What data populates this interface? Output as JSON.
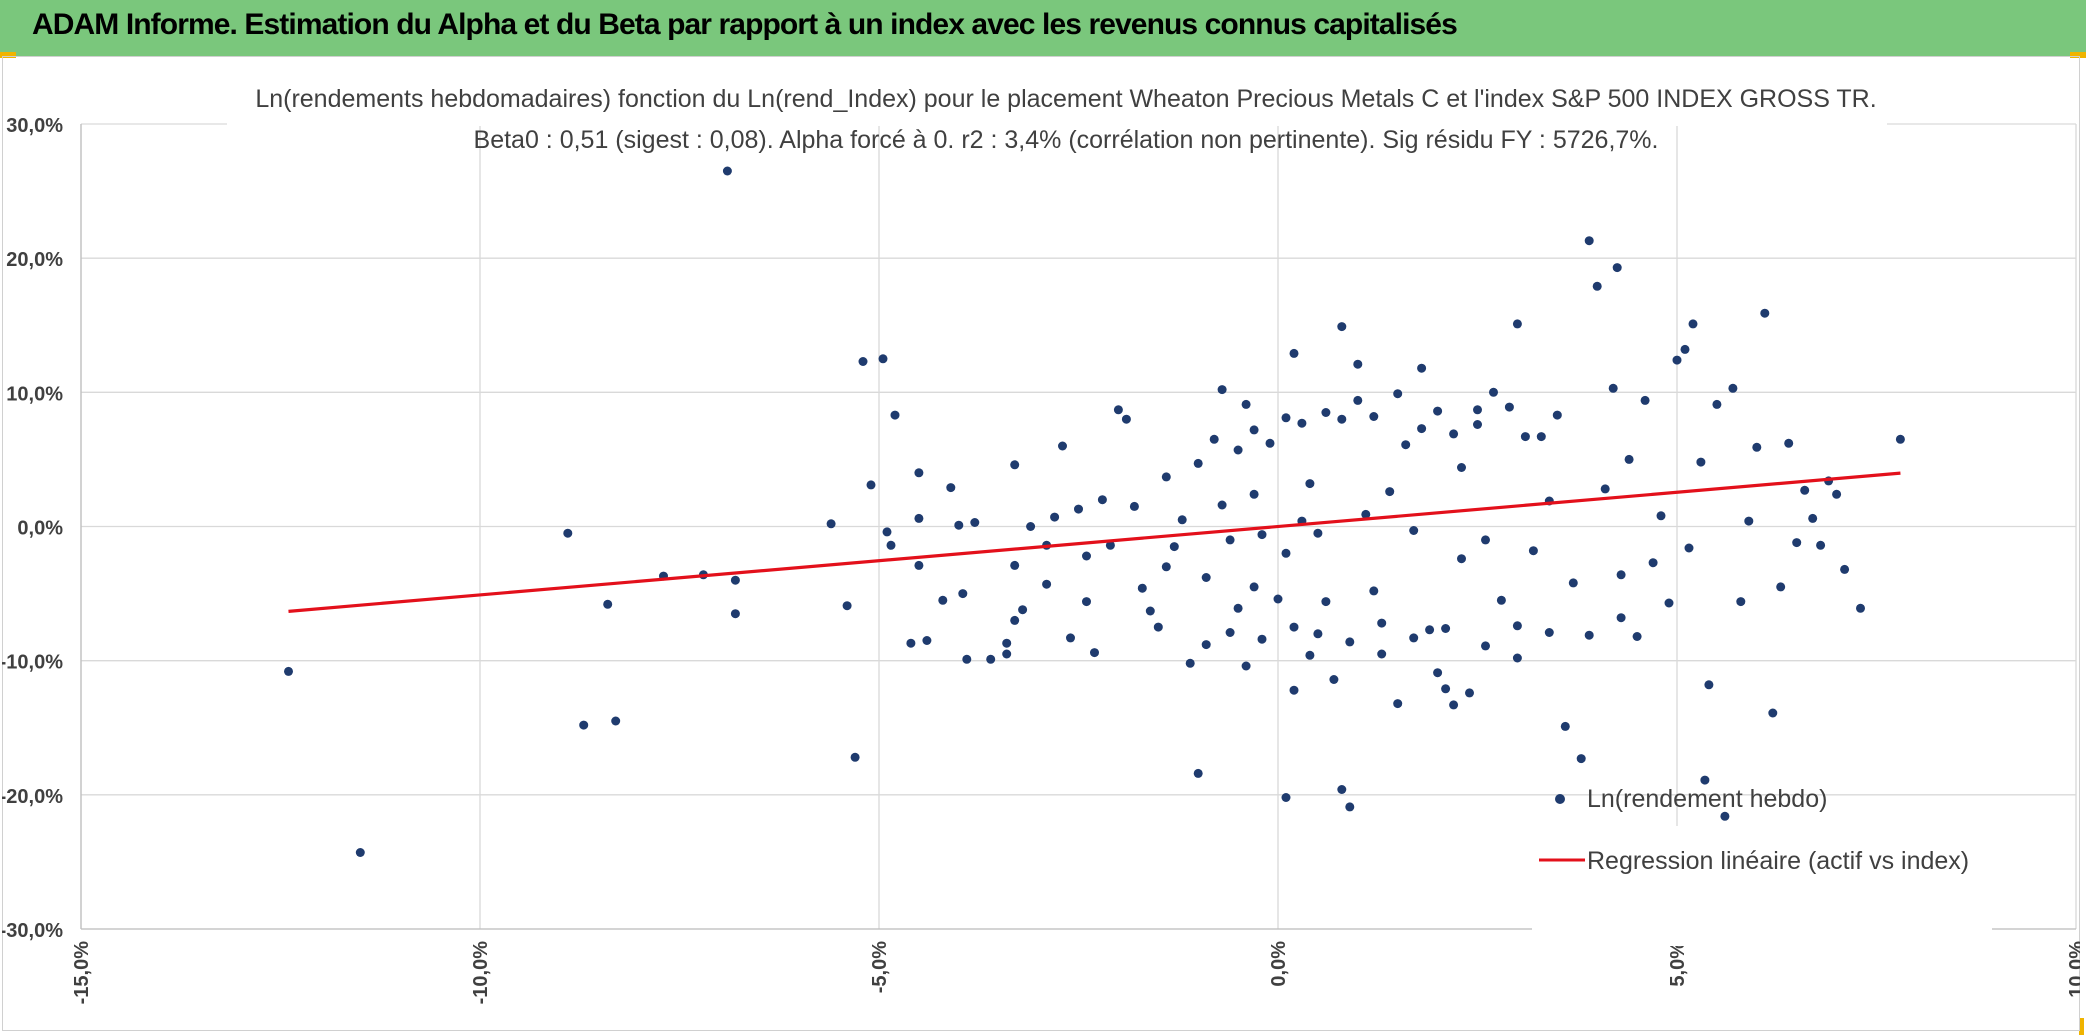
{
  "banner": {
    "title": "ADAM Informe. Estimation du Alpha et du Beta par rapport à un index avec les revenus connus capitalisés"
  },
  "colors": {
    "banner_bg": "#7ac77c",
    "points": "#1f3b6e",
    "regression": "#e3101b",
    "grid": "#d9d9d9",
    "accent_corner": "#f0b400"
  },
  "chart_data": {
    "type": "scatter",
    "title": "Ln(rendements hebdomadaires) fonction du Ln(rend_Index) pour le placement Wheaton Precious Metals C et l'index S&P 500 INDEX GROSS TR.",
    "subtitle": "Beta0 : 0,51 (sigest : 0,08). Alpha forcé à 0. r2 : 3,4% (corrélation non pertinente). Sig résidu FY : 5726,7%.",
    "xlabel": "",
    "ylabel": "",
    "xlim": [
      -15,
      10
    ],
    "ylim": [
      -30,
      30
    ],
    "x_ticks": [
      "-15,0%",
      "-10,0%",
      "-5,0%",
      "0,0%",
      "5,0%",
      "10,0%"
    ],
    "y_ticks": [
      "30,0%",
      "20,0%",
      "10,0%",
      "0,0%",
      "-10,0%",
      "-20,0%",
      "-30,0%"
    ],
    "grid": true,
    "legend_position": "bottom-right",
    "legend": [
      {
        "label": "Ln(rendement hebdo)",
        "kind": "point"
      },
      {
        "label": "Regression linéaire (actif vs index)",
        "kind": "line"
      }
    ],
    "regression": {
      "slope": 0.51,
      "intercept": 0,
      "x_range": [
        -12.4,
        7.8
      ]
    },
    "series": [
      {
        "name": "Ln(rendement hebdo)",
        "points": [
          [
            -12.4,
            -10.8
          ],
          [
            -11.5,
            -24.3
          ],
          [
            -8.9,
            -0.5
          ],
          [
            -8.7,
            -14.8
          ],
          [
            -8.4,
            -5.8
          ],
          [
            -8.3,
            -14.5
          ],
          [
            -7.7,
            -3.7
          ],
          [
            -7.2,
            -3.6
          ],
          [
            -6.9,
            26.5
          ],
          [
            -6.8,
            -4.0
          ],
          [
            -6.8,
            -6.5
          ],
          [
            -5.6,
            0.2
          ],
          [
            -5.4,
            -5.9
          ],
          [
            -5.3,
            -17.2
          ],
          [
            -5.2,
            12.3
          ],
          [
            -5.1,
            3.1
          ],
          [
            -4.95,
            12.5
          ],
          [
            -4.9,
            -0.4
          ],
          [
            -4.85,
            -1.4
          ],
          [
            -4.8,
            8.3
          ],
          [
            -4.6,
            -8.7
          ],
          [
            -4.5,
            0.6
          ],
          [
            -4.5,
            -2.9
          ],
          [
            -4.5,
            4.0
          ],
          [
            -4.4,
            -8.5
          ],
          [
            -4.2,
            -5.5
          ],
          [
            -4.1,
            2.9
          ],
          [
            -4.0,
            0.1
          ],
          [
            -3.95,
            -5.0
          ],
          [
            -3.9,
            -9.9
          ],
          [
            -3.8,
            0.3
          ],
          [
            -3.6,
            -9.9
          ],
          [
            -3.4,
            -9.5
          ],
          [
            -3.4,
            -8.7
          ],
          [
            -3.3,
            4.6
          ],
          [
            -3.3,
            -2.9
          ],
          [
            -3.3,
            -7.0
          ],
          [
            -3.2,
            -6.2
          ],
          [
            -3.1,
            0.0
          ],
          [
            -2.9,
            -4.3
          ],
          [
            -2.9,
            -1.4
          ],
          [
            -2.8,
            0.7
          ],
          [
            -2.7,
            6.0
          ],
          [
            -2.6,
            -8.3
          ],
          [
            -2.5,
            1.3
          ],
          [
            -2.4,
            -2.2
          ],
          [
            -2.4,
            -5.6
          ],
          [
            -2.3,
            -9.4
          ],
          [
            -2.2,
            2.0
          ],
          [
            -2.1,
            -1.4
          ],
          [
            -2.0,
            8.7
          ],
          [
            -1.9,
            8.0
          ],
          [
            -1.8,
            1.5
          ],
          [
            -1.7,
            -4.6
          ],
          [
            -1.6,
            -6.3
          ],
          [
            -1.5,
            -7.5
          ],
          [
            -1.4,
            -3.0
          ],
          [
            -1.4,
            3.7
          ],
          [
            -1.3,
            -1.5
          ],
          [
            -1.2,
            0.5
          ],
          [
            -1.1,
            -10.2
          ],
          [
            -1.0,
            4.7
          ],
          [
            -1.0,
            -18.4
          ],
          [
            -0.9,
            -3.8
          ],
          [
            -0.8,
            6.5
          ],
          [
            -0.7,
            1.6
          ],
          [
            -0.6,
            -1.0
          ],
          [
            -0.5,
            -6.1
          ],
          [
            -0.5,
            5.7
          ],
          [
            -0.4,
            -10.4
          ],
          [
            -0.3,
            2.4
          ],
          [
            -0.3,
            -4.5
          ],
          [
            -0.2,
            -0.6
          ],
          [
            -0.1,
            6.2
          ],
          [
            0.0,
            -5.4
          ],
          [
            0.1,
            -20.2
          ],
          [
            0.1,
            -2.0
          ],
          [
            0.2,
            12.9
          ],
          [
            0.2,
            -12.2
          ],
          [
            0.3,
            0.4
          ],
          [
            0.4,
            3.2
          ],
          [
            0.4,
            -9.6
          ],
          [
            0.5,
            -0.5
          ],
          [
            0.6,
            -5.6
          ],
          [
            0.7,
            -11.4
          ],
          [
            0.8,
            14.9
          ],
          [
            0.8,
            8.0
          ],
          [
            0.8,
            -19.6
          ],
          [
            0.9,
            -20.9
          ],
          [
            1.0,
            12.1
          ],
          [
            1.1,
            0.9
          ],
          [
            1.2,
            -4.8
          ],
          [
            1.3,
            -9.5
          ],
          [
            1.4,
            2.6
          ],
          [
            1.5,
            -13.2
          ],
          [
            1.6,
            6.1
          ],
          [
            1.7,
            -0.3
          ],
          [
            1.8,
            11.8
          ],
          [
            1.9,
            -7.7
          ],
          [
            2.0,
            -10.9
          ],
          [
            2.1,
            -12.1
          ],
          [
            2.2,
            -13.3
          ],
          [
            2.3,
            4.4
          ],
          [
            2.3,
            -2.4
          ],
          [
            2.4,
            -12.4
          ],
          [
            2.5,
            8.7
          ],
          [
            2.6,
            -1.0
          ],
          [
            2.7,
            10.0
          ],
          [
            2.8,
            -5.5
          ],
          [
            3.0,
            15.1
          ],
          [
            3.0,
            -9.8
          ],
          [
            3.2,
            -1.8
          ],
          [
            3.3,
            6.7
          ],
          [
            3.4,
            1.9
          ],
          [
            3.6,
            -14.9
          ],
          [
            3.7,
            -4.2
          ],
          [
            3.8,
            -17.3
          ],
          [
            3.9,
            21.3
          ],
          [
            4.0,
            17.9
          ],
          [
            4.1,
            2.8
          ],
          [
            4.2,
            10.3
          ],
          [
            4.25,
            19.3
          ],
          [
            4.3,
            -3.6
          ],
          [
            4.4,
            5.0
          ],
          [
            4.5,
            -8.2
          ],
          [
            4.6,
            9.4
          ],
          [
            4.7,
            -2.7
          ],
          [
            4.8,
            0.8
          ],
          [
            4.9,
            -5.7
          ],
          [
            5.0,
            12.4
          ],
          [
            5.1,
            13.2
          ],
          [
            5.15,
            -1.6
          ],
          [
            5.2,
            15.1
          ],
          [
            5.3,
            4.8
          ],
          [
            5.35,
            -18.9
          ],
          [
            5.4,
            -11.8
          ],
          [
            5.5,
            9.1
          ],
          [
            5.6,
            -21.6
          ],
          [
            5.7,
            10.3
          ],
          [
            5.8,
            -5.6
          ],
          [
            5.9,
            0.4
          ],
          [
            6.0,
            5.9
          ],
          [
            6.1,
            15.9
          ],
          [
            6.2,
            -13.9
          ],
          [
            6.3,
            -4.5
          ],
          [
            6.4,
            6.2
          ],
          [
            6.5,
            -1.2
          ],
          [
            6.6,
            2.7
          ],
          [
            6.7,
            0.6
          ],
          [
            6.8,
            -1.4
          ],
          [
            6.9,
            3.4
          ],
          [
            7.0,
            2.4
          ],
          [
            7.1,
            -3.2
          ],
          [
            7.3,
            -6.1
          ],
          [
            7.8,
            6.5
          ],
          [
            -0.7,
            10.2
          ],
          [
            -0.4,
            9.1
          ],
          [
            -0.3,
            7.2
          ],
          [
            0.1,
            8.1
          ],
          [
            0.3,
            7.7
          ],
          [
            0.6,
            8.5
          ],
          [
            1.0,
            9.4
          ],
          [
            1.2,
            8.2
          ],
          [
            1.5,
            9.9
          ],
          [
            1.8,
            7.3
          ],
          [
            2.0,
            8.6
          ],
          [
            2.2,
            6.9
          ],
          [
            2.5,
            7.6
          ],
          [
            2.9,
            8.9
          ],
          [
            3.1,
            6.7
          ],
          [
            3.5,
            8.3
          ],
          [
            -0.9,
            -8.8
          ],
          [
            -0.6,
            -7.9
          ],
          [
            -0.2,
            -8.4
          ],
          [
            0.2,
            -7.5
          ],
          [
            0.5,
            -8.0
          ],
          [
            0.9,
            -8.6
          ],
          [
            1.3,
            -7.2
          ],
          [
            1.7,
            -8.3
          ],
          [
            2.1,
            -7.6
          ],
          [
            2.6,
            -8.9
          ],
          [
            3.0,
            -7.4
          ],
          [
            3.4,
            -7.9
          ],
          [
            3.9,
            -8.1
          ],
          [
            4.3,
            -6.8
          ]
        ]
      }
    ]
  }
}
